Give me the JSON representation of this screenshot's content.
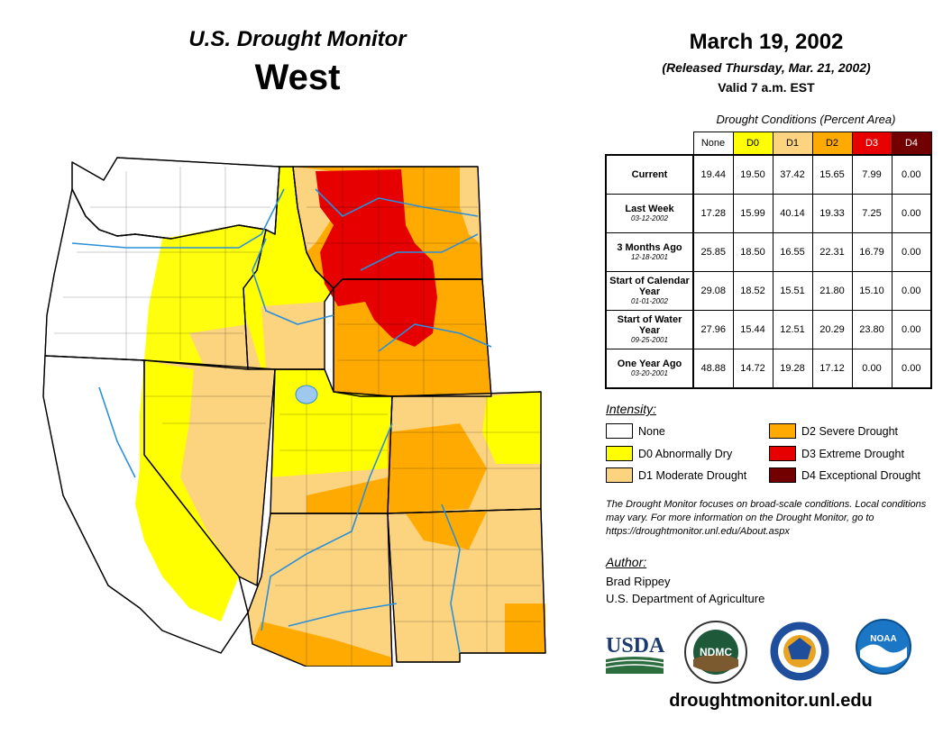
{
  "header": {
    "title_line1": "U.S. Drought Monitor",
    "title_line2": "West",
    "date": "March 19, 2002",
    "released": "(Released Thursday, Mar. 21, 2002)",
    "valid": "Valid 7 a.m. EST"
  },
  "conditions": {
    "caption": "Drought Conditions (Percent Area)",
    "columns": [
      {
        "label": "None",
        "color": "#ffffff"
      },
      {
        "label": "D0",
        "color": "#ffff00"
      },
      {
        "label": "D1",
        "color": "#fcd37f"
      },
      {
        "label": "D2",
        "color": "#ffaa00"
      },
      {
        "label": "D3",
        "color": "#e60000"
      },
      {
        "label": "D4",
        "color": "#730000"
      }
    ],
    "rows": [
      {
        "label": "Current",
        "date": "",
        "values": [
          "19.44",
          "19.50",
          "37.42",
          "15.65",
          "7.99",
          "0.00"
        ]
      },
      {
        "label": "Last Week",
        "date": "03-12-2002",
        "values": [
          "17.28",
          "15.99",
          "40.14",
          "19.33",
          "7.25",
          "0.00"
        ]
      },
      {
        "label": "3 Months Ago",
        "date": "12-18-2001",
        "values": [
          "25.85",
          "18.50",
          "16.55",
          "22.31",
          "16.79",
          "0.00"
        ]
      },
      {
        "label": "Start of Calendar Year",
        "date": "01-01-2002",
        "values": [
          "29.08",
          "18.52",
          "15.51",
          "21.80",
          "15.10",
          "0.00"
        ]
      },
      {
        "label": "Start of Water Year",
        "date": "09-25-2001",
        "values": [
          "27.96",
          "15.44",
          "12.51",
          "20.29",
          "23.80",
          "0.00"
        ]
      },
      {
        "label": "One Year Ago",
        "date": "03-20-2001",
        "values": [
          "48.88",
          "14.72",
          "19.28",
          "17.12",
          "0.00",
          "0.00"
        ]
      }
    ]
  },
  "legend": {
    "title": "Intensity:",
    "items": [
      {
        "label": "None",
        "color": "#ffffff"
      },
      {
        "label": "D0 Abnormally Dry",
        "color": "#ffff00"
      },
      {
        "label": "D1 Moderate Drought",
        "color": "#fcd37f"
      },
      {
        "label": "D2 Severe Drought",
        "color": "#ffaa00"
      },
      {
        "label": "D3 Extreme Drought",
        "color": "#e60000"
      },
      {
        "label": "D4 Exceptional Drought",
        "color": "#730000"
      }
    ]
  },
  "note": "The Drought Monitor focuses on broad-scale conditions. Local conditions may vary. For more information on the Drought Monitor, go to https://droughtmonitor.unl.edu/About.aspx",
  "author": {
    "title": "Author:",
    "name": "Brad Rippey",
    "org": "U.S. Department of Agriculture"
  },
  "logos": {
    "usda": "USDA",
    "ndmc": "NDMC",
    "noaa": "NOAA"
  },
  "website": "droughtmonitor.unl.edu"
}
